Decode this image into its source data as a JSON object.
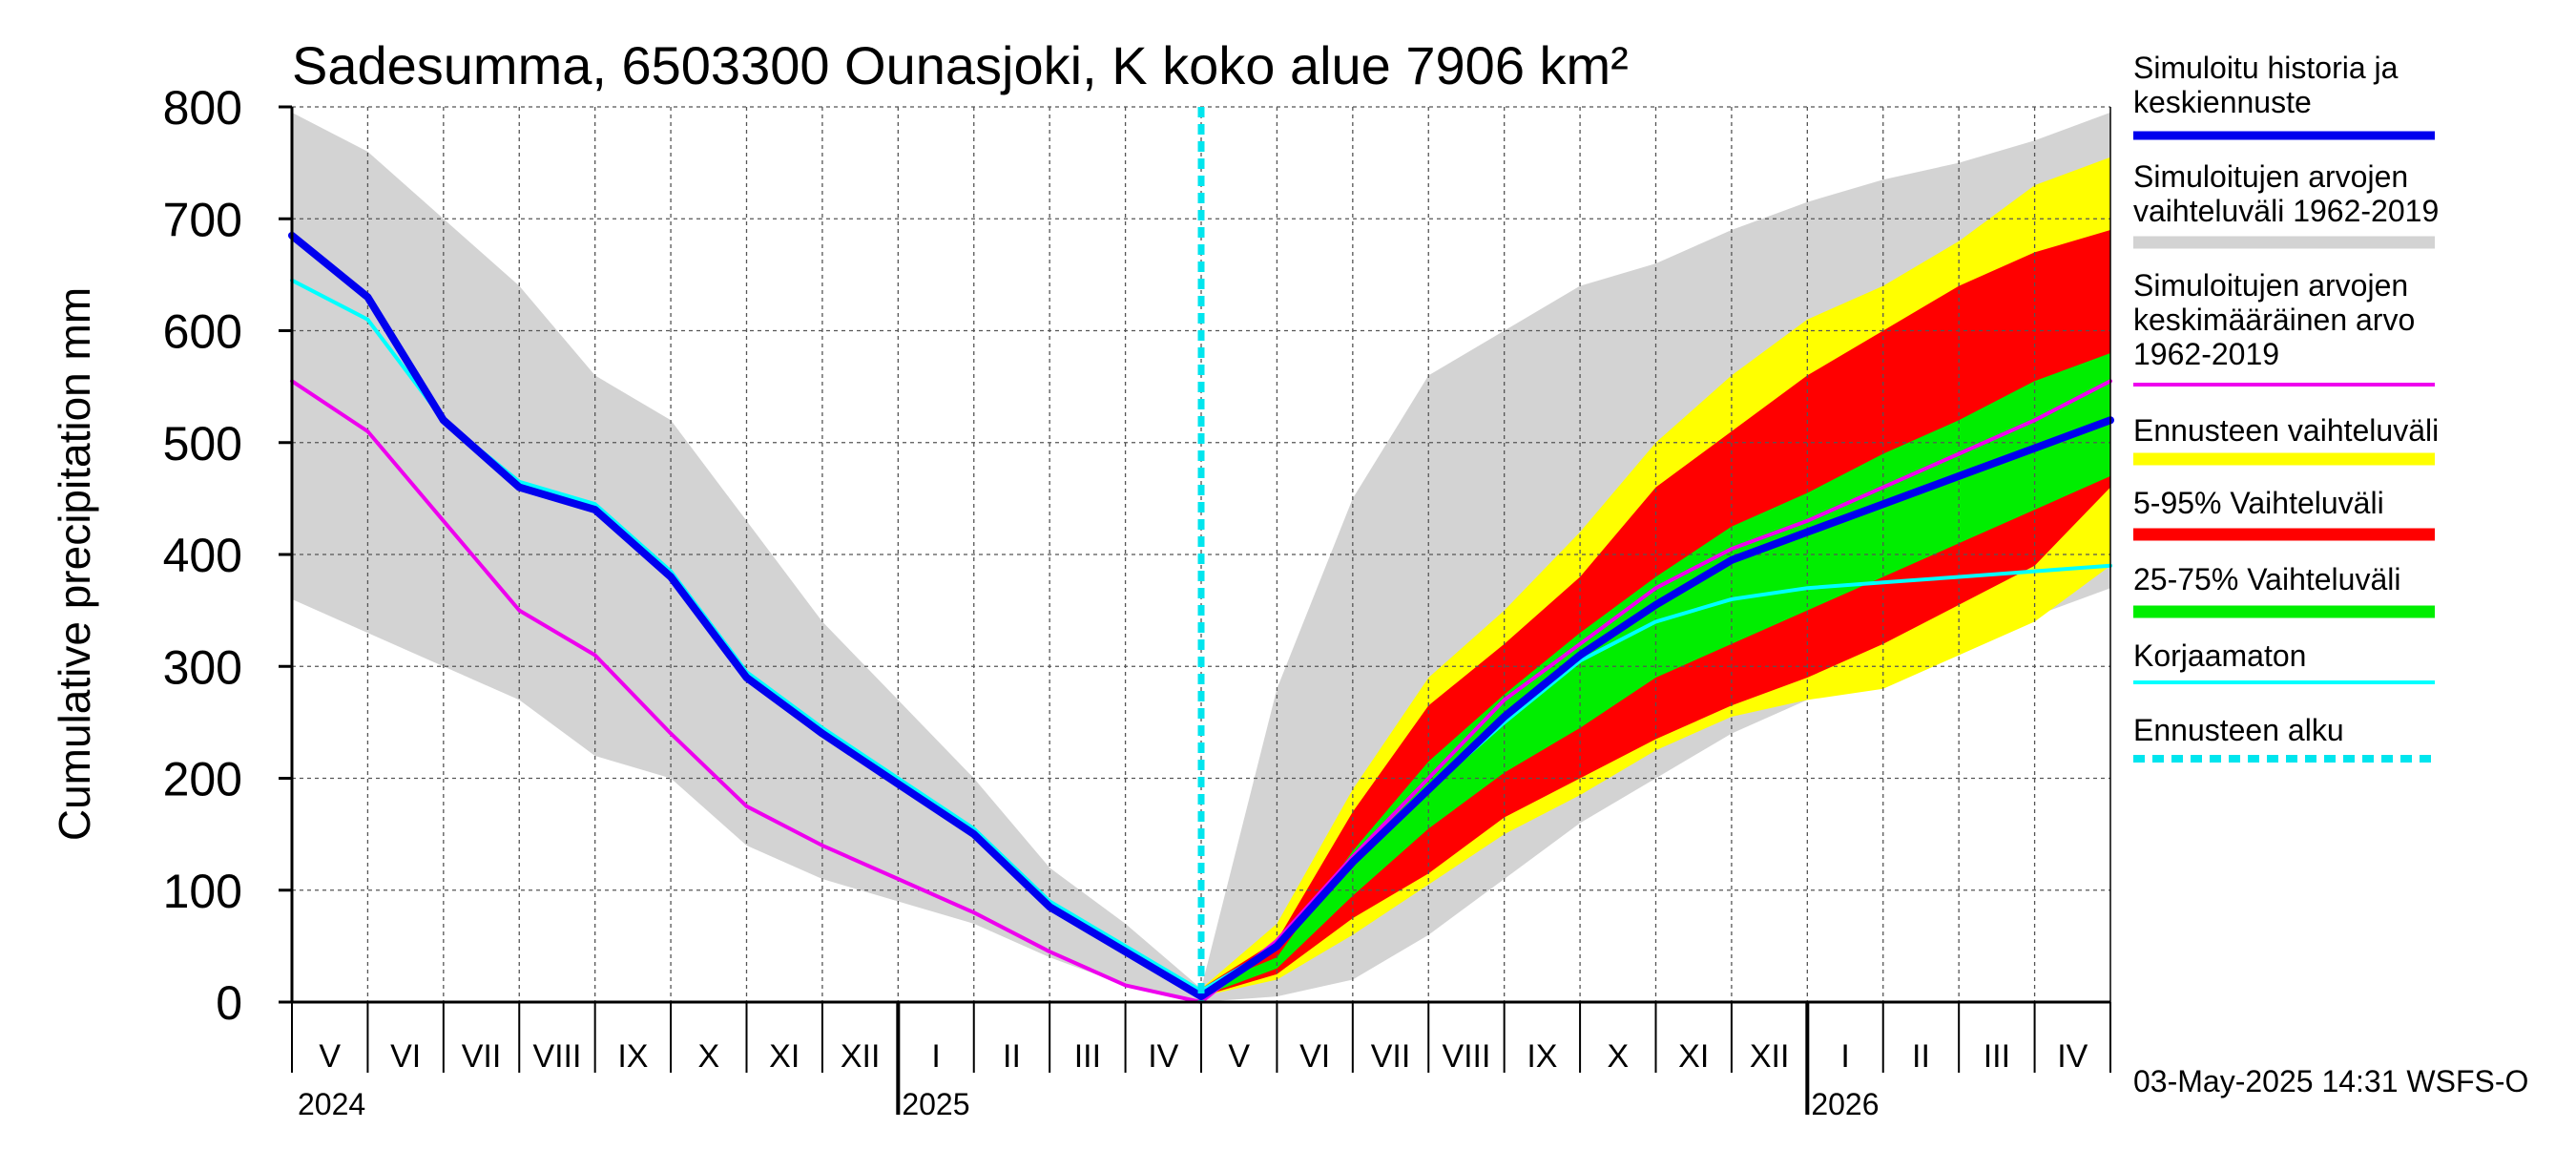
{
  "chart_data": {
    "type": "area",
    "title": "Sadesumma, 6503300 Ounasjoki, K koko alue 7906 km²",
    "ylabel": "Cumulative precipitation   mm",
    "xlabel": "",
    "ylim": [
      0,
      800
    ],
    "yticks": [
      0,
      100,
      200,
      300,
      400,
      500,
      600,
      700,
      800
    ],
    "grid": true,
    "month_labels": [
      "V",
      "VI",
      "VII",
      "VIII",
      "IX",
      "X",
      "XI",
      "XII",
      "I",
      "II",
      "III",
      "IV",
      "V",
      "VI",
      "VII",
      "VIII",
      "IX",
      "X",
      "XI",
      "XII",
      "I",
      "II",
      "III",
      "IV"
    ],
    "year_labels": [
      "2024",
      "2025",
      "2026"
    ],
    "timestamp": "03-May-2025 14:31 WSFS-O",
    "forecast_start_month": 12,
    "legend": [
      {
        "name": "Simuloitu historia ja keskiennuste",
        "lines": [
          "Simuloitu historia ja",
          "keskiennuste"
        ],
        "color": "#0000ee",
        "kind": "line"
      },
      {
        "name": "Simuloitujen arvojen vaihteluväli 1962-2019",
        "lines": [
          "Simuloitujen arvojen",
          "vaihteluväli 1962-2019"
        ],
        "color": "#d3d3d3",
        "kind": "band"
      },
      {
        "name": "Simuloitujen arvojen keskimääräinen arvo 1962-2019",
        "lines": [
          "Simuloitujen arvojen",
          "keskimääräinen arvo",
          "   1962-2019"
        ],
        "color": "#ee00ee",
        "kind": "line"
      },
      {
        "name": "Ennusteen vaihteluväli",
        "lines": [
          "Ennusteen vaihteluväli"
        ],
        "color": "#ffff00",
        "kind": "band"
      },
      {
        "name": "5-95% Vaihteluväli",
        "lines": [
          "5-95% Vaihteluväli"
        ],
        "color": "#ff0000",
        "kind": "band"
      },
      {
        "name": "25-75% Vaihteluväli",
        "lines": [
          "25-75% Vaihteluväli"
        ],
        "color": "#00ee00",
        "kind": "band"
      },
      {
        "name": "Korjaamaton",
        "lines": [
          "Korjaamaton"
        ],
        "color": "#00ffff",
        "kind": "line"
      },
      {
        "name": "Ennusteen alku",
        "lines": [
          "Ennusteen alku"
        ],
        "color": "#00e5ee",
        "kind": "dashed"
      }
    ],
    "x_months": [
      0,
      1,
      2,
      3,
      4,
      5,
      6,
      7,
      8,
      9,
      10,
      11,
      12,
      13,
      14,
      15,
      16,
      17,
      18,
      19,
      20,
      21,
      22,
      23,
      24
    ],
    "series": {
      "history_range_upper": [
        795,
        760,
        700,
        640,
        560,
        520,
        430,
        340,
        270,
        200,
        120,
        70,
        12,
        280,
        450,
        560,
        600,
        640,
        660,
        690,
        715,
        735,
        750,
        770,
        795
      ],
      "history_range_lower": [
        360,
        330,
        300,
        270,
        220,
        200,
        140,
        110,
        90,
        70,
        40,
        15,
        0,
        5,
        20,
        60,
        110,
        160,
        200,
        240,
        270,
        300,
        320,
        345,
        370
      ],
      "simulated_history_mean": [
        685,
        630,
        520,
        460,
        440,
        380,
        290,
        240,
        195,
        150,
        85,
        45,
        5,
        50,
        125,
        190,
        255,
        310,
        355,
        395,
        420,
        445,
        470,
        495,
        520
      ],
      "uncorrected": [
        645,
        610,
        520,
        465,
        445,
        385,
        295,
        245,
        200,
        155,
        90,
        50,
        10,
        50,
        125,
        190,
        250,
        305,
        340,
        360,
        370,
        375,
        380,
        385,
        390
      ],
      "climatology_mean": [
        555,
        510,
        430,
        350,
        310,
        240,
        175,
        140,
        110,
        80,
        45,
        15,
        0,
        55,
        130,
        200,
        270,
        320,
        370,
        405,
        430,
        460,
        490,
        520,
        555
      ],
      "forecast_total_upper": [
        12,
        70,
        190,
        290,
        350,
        420,
        500,
        560,
        610,
        640,
        680,
        730,
        755
      ],
      "forecast_total_lower": [
        5,
        20,
        60,
        105,
        150,
        185,
        225,
        255,
        270,
        280,
        310,
        340,
        390
      ],
      "forecast_p5_p95_upper": [
        12,
        55,
        170,
        265,
        320,
        380,
        460,
        510,
        560,
        600,
        640,
        670,
        690
      ],
      "forecast_p5_p95_lower": [
        5,
        25,
        75,
        115,
        165,
        200,
        235,
        265,
        290,
        320,
        355,
        390,
        460
      ],
      "forecast_p25_p75_upper": [
        12,
        40,
        135,
        215,
        275,
        330,
        380,
        425,
        455,
        490,
        520,
        555,
        580
      ],
      "forecast_p25_p75_lower": [
        5,
        30,
        95,
        155,
        205,
        245,
        290,
        320,
        350,
        380,
        410,
        440,
        470
      ]
    }
  }
}
